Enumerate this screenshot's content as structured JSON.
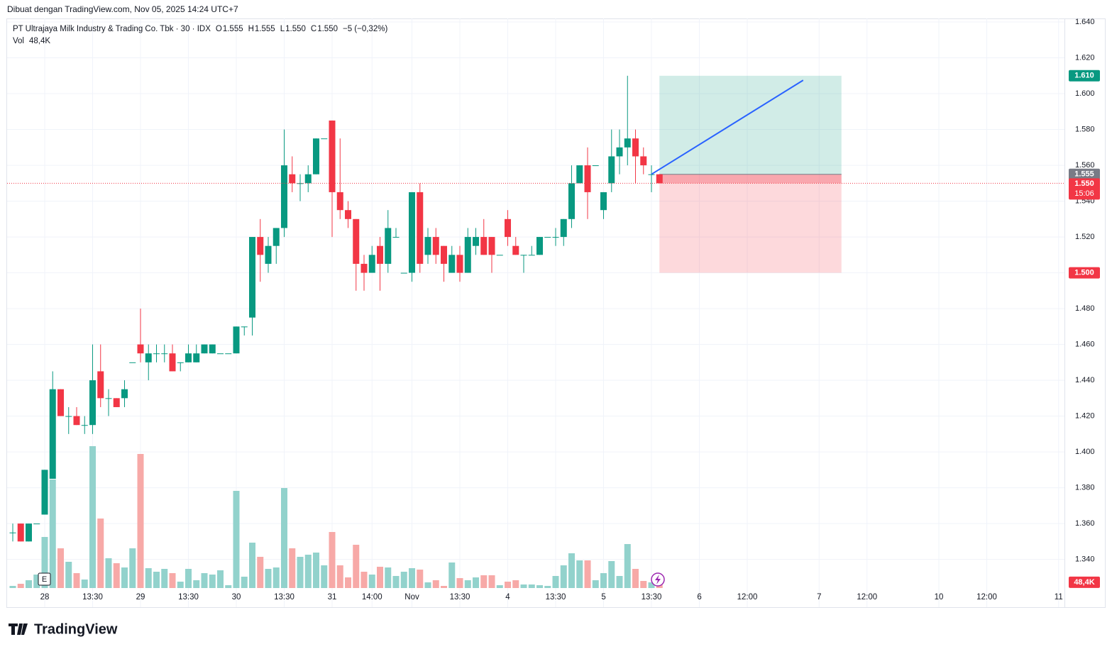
{
  "header": {
    "credit": "Dibuat dengan TradingView.com, Nov 05, 2025 14:24 UTC+7",
    "brand": "TradingView"
  },
  "chart_data": {
    "type": "candlestick",
    "legend": {
      "symbol": "PT Ultrajaya Milk Industry & Trading Co. Tbk · 30 · IDX",
      "ohlc": [
        {
          "key": "O",
          "value": "1.555"
        },
        {
          "key": "H",
          "value": "1.555"
        },
        {
          "key": "L",
          "value": "1.550"
        },
        {
          "key": "C",
          "value": "1.550"
        }
      ],
      "change": "−5 (−0,32%)",
      "volume_key": "Vol",
      "volume_value": "48,4K"
    },
    "up_color": "#089981",
    "down_color": "#f23645",
    "volume_up_color": "#92d2cc",
    "volume_down_color": "#f7a9a7",
    "open": [
      1.355,
      1.36,
      1.35,
      1.36,
      1.365,
      1.385,
      1.435,
      1.42,
      1.42,
      1.415,
      1.415,
      1.445,
      1.43,
      1.43,
      1.43,
      1.45,
      1.46,
      1.45,
      1.455,
      1.455,
      1.455,
      1.45,
      1.45,
      1.45,
      1.455,
      1.455,
      1.455,
      1.455,
      1.455,
      1.47,
      1.475,
      1.52,
      1.505,
      1.515,
      1.525,
      1.555,
      1.55,
      1.55,
      1.555,
      1.575,
      1.585,
      1.545,
      1.535,
      1.53,
      1.505,
      1.5,
      1.515,
      1.505,
      1.52,
      1.5,
      1.5,
      1.545,
      1.51,
      1.52,
      1.515,
      1.5,
      1.51,
      1.5,
      1.515,
      1.52,
      1.52,
      1.51,
      1.53,
      1.515,
      1.51,
      1.51,
      1.51,
      1.52,
      1.52,
      1.52,
      1.53,
      1.55,
      1.56,
      1.56,
      1.535,
      1.55,
      1.565,
      1.57,
      1.575,
      1.565,
      1.555,
      1.555
    ],
    "high": [
      1.36,
      1.36,
      1.36,
      1.36,
      1.39,
      1.445,
      1.435,
      1.425,
      1.425,
      1.42,
      1.46,
      1.46,
      1.435,
      1.43,
      1.44,
      1.45,
      1.48,
      1.46,
      1.46,
      1.46,
      1.46,
      1.45,
      1.46,
      1.46,
      1.46,
      1.46,
      1.455,
      1.455,
      1.47,
      1.47,
      1.52,
      1.53,
      1.52,
      1.525,
      1.58,
      1.565,
      1.555,
      1.56,
      1.575,
      1.575,
      1.585,
      1.575,
      1.54,
      1.53,
      1.51,
      1.515,
      1.52,
      1.535,
      1.525,
      1.5,
      1.545,
      1.55,
      1.525,
      1.525,
      1.515,
      1.515,
      1.515,
      1.525,
      1.525,
      1.53,
      1.52,
      1.51,
      1.535,
      1.52,
      1.51,
      1.515,
      1.52,
      1.52,
      1.525,
      1.53,
      1.56,
      1.56,
      1.57,
      1.56,
      1.545,
      1.58,
      1.58,
      1.61,
      1.58,
      1.57,
      1.56,
      1.555
    ],
    "low": [
      1.35,
      1.35,
      1.35,
      1.36,
      1.365,
      1.385,
      1.42,
      1.41,
      1.415,
      1.41,
      1.41,
      1.425,
      1.42,
      1.425,
      1.425,
      1.45,
      1.45,
      1.44,
      1.45,
      1.45,
      1.445,
      1.445,
      1.45,
      1.45,
      1.455,
      1.455,
      1.455,
      1.455,
      1.455,
      1.465,
      1.465,
      1.495,
      1.5,
      1.505,
      1.52,
      1.545,
      1.54,
      1.545,
      1.555,
      1.575,
      1.52,
      1.53,
      1.525,
      1.49,
      1.49,
      1.5,
      1.49,
      1.5,
      1.52,
      1.5,
      1.495,
      1.5,
      1.505,
      1.505,
      1.495,
      1.5,
      1.495,
      1.5,
      1.51,
      1.51,
      1.5,
      1.51,
      1.515,
      1.51,
      1.5,
      1.51,
      1.51,
      1.52,
      1.515,
      1.515,
      1.525,
      1.55,
      1.53,
      1.56,
      1.53,
      1.545,
      1.555,
      1.56,
      1.55,
      1.555,
      1.545,
      1.55
    ],
    "close": [
      1.355,
      1.35,
      1.36,
      1.36,
      1.39,
      1.435,
      1.42,
      1.42,
      1.415,
      1.415,
      1.44,
      1.43,
      1.43,
      1.425,
      1.435,
      1.45,
      1.455,
      1.455,
      1.455,
      1.455,
      1.445,
      1.45,
      1.455,
      1.455,
      1.46,
      1.46,
      1.455,
      1.455,
      1.47,
      1.47,
      1.52,
      1.51,
      1.515,
      1.525,
      1.56,
      1.55,
      1.55,
      1.555,
      1.575,
      1.575,
      1.545,
      1.535,
      1.53,
      1.505,
      1.5,
      1.51,
      1.505,
      1.525,
      1.52,
      1.5,
      1.545,
      1.505,
      1.52,
      1.51,
      1.505,
      1.51,
      1.5,
      1.52,
      1.52,
      1.51,
      1.51,
      1.51,
      1.52,
      1.51,
      1.51,
      1.51,
      1.52,
      1.52,
      1.52,
      1.53,
      1.55,
      1.56,
      1.545,
      1.56,
      1.545,
      1.565,
      1.57,
      1.575,
      1.565,
      1.56,
      1.555,
      1.55
    ],
    "volume": [
      12000,
      24000,
      44000,
      76000,
      288000,
      612000,
      224000,
      148000,
      84000,
      48000,
      800000,
      392000,
      168000,
      140000,
      116000,
      224000,
      756000,
      112000,
      92000,
      108000,
      84000,
      36000,
      108000,
      44000,
      84000,
      76000,
      100000,
      16000,
      548000,
      64000,
      256000,
      176000,
      108000,
      116000,
      564000,
      224000,
      176000,
      188000,
      200000,
      128000,
      316000,
      128000,
      60000,
      244000,
      92000,
      76000,
      120000,
      116000,
      68000,
      92000,
      112000,
      104000,
      32000,
      44000,
      12000,
      144000,
      56000,
      44000,
      60000,
      72000,
      72000,
      16000,
      36000,
      44000,
      20000,
      20000,
      16000,
      12000,
      68000,
      128000,
      196000,
      156000,
      156000,
      44000,
      84000,
      152000,
      68000,
      248000,
      108000,
      40000,
      32000,
      48400
    ],
    "xlim": [
      -0.71,
      131.73
    ],
    "ylim": [
      1.324,
      1.642
    ],
    "volume_lim": [
      0,
      3212000
    ],
    "yticks": [
      {
        "value": 1.34,
        "label": "1.340"
      },
      {
        "value": 1.36,
        "label": "1.360"
      },
      {
        "value": 1.38,
        "label": "1.380"
      },
      {
        "value": 1.4,
        "label": "1.400"
      },
      {
        "value": 1.42,
        "label": "1.420"
      },
      {
        "value": 1.44,
        "label": "1.440"
      },
      {
        "value": 1.46,
        "label": "1.460"
      },
      {
        "value": 1.48,
        "label": "1.480"
      },
      {
        "value": 1.5,
        "label": "1.500"
      },
      {
        "value": 1.52,
        "label": "1.520"
      },
      {
        "value": 1.54,
        "label": "1.540"
      },
      {
        "value": 1.56,
        "label": "1.560"
      },
      {
        "value": 1.58,
        "label": "1.580"
      },
      {
        "value": 1.6,
        "label": "1.600"
      },
      {
        "value": 1.62,
        "label": "1.620"
      },
      {
        "value": 1.64,
        "label": "1.640"
      }
    ],
    "xticks": [
      {
        "value": 4,
        "label": "28"
      },
      {
        "value": 10,
        "label": "13:30"
      },
      {
        "value": 16,
        "label": "29"
      },
      {
        "value": 22,
        "label": "13:30"
      },
      {
        "value": 28,
        "label": "30"
      },
      {
        "value": 34,
        "label": "13:30"
      },
      {
        "value": 40,
        "label": "31"
      },
      {
        "value": 45,
        "label": "14:00"
      },
      {
        "value": 50,
        "label": "Nov"
      },
      {
        "value": 56,
        "label": "13:30"
      },
      {
        "value": 62,
        "label": "4"
      },
      {
        "value": 68,
        "label": "13:30"
      },
      {
        "value": 74,
        "label": "5"
      },
      {
        "value": 80,
        "label": "13:30"
      },
      {
        "value": 86,
        "label": "6"
      },
      {
        "value": 92,
        "label": "12:00"
      },
      {
        "value": 101,
        "label": "7"
      },
      {
        "value": 107,
        "label": "12:00"
      },
      {
        "value": 116,
        "label": "10"
      },
      {
        "value": 122,
        "label": "12:00"
      },
      {
        "value": 131,
        "label": "11"
      }
    ],
    "grid": true,
    "last_price": {
      "value": 1.55,
      "label": "1.550",
      "countdown": "15:06"
    },
    "position": {
      "start": 81,
      "end": 103.8,
      "entry": {
        "value": 1.555,
        "label": "1.555"
      },
      "target": {
        "value": 1.61,
        "label": "1.610"
      },
      "stop": {
        "value": 1.5,
        "label": "1.500"
      }
    },
    "trend_line": {
      "x": [
        80,
        99
      ],
      "y": [
        1.555,
        1.6075
      ],
      "color": "#2962ff"
    }
  }
}
